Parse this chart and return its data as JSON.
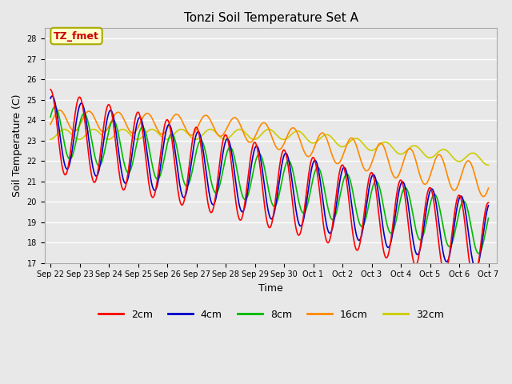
{
  "title": "Tonzi Soil Temperature Set A",
  "xlabel": "Time",
  "ylabel": "Soil Temperature (C)",
  "ylim": [
    17.0,
    28.5
  ],
  "yticks": [
    17.0,
    18.0,
    19.0,
    20.0,
    21.0,
    22.0,
    23.0,
    24.0,
    25.0,
    26.0,
    27.0,
    28.0
  ],
  "annotation_text": "TZ_fmet",
  "annotation_bg": "#ffffcc",
  "annotation_border": "#aaaa00",
  "annotation_text_color": "#cc0000",
  "series_colors": [
    "#ff0000",
    "#0000cc",
    "#00bb00",
    "#ff8800",
    "#cccc00"
  ],
  "series_labels": [
    "2cm",
    "4cm",
    "8cm",
    "16cm",
    "32cm"
  ],
  "line_width": 1.2,
  "plot_bg": "#e8e8e8",
  "grid_color": "#ffffff",
  "tick_labels": [
    "Sep 22",
    "Sep 23",
    "Sep 24",
    "Sep 25",
    "Sep 26",
    "Sep 27",
    "Sep 28",
    "Sep 29",
    "Sep 30",
    "Oct 1",
    "Oct 2",
    "Oct 3",
    "Oct 4",
    "Oct 5",
    "Oct 6",
    "Oct 7"
  ]
}
